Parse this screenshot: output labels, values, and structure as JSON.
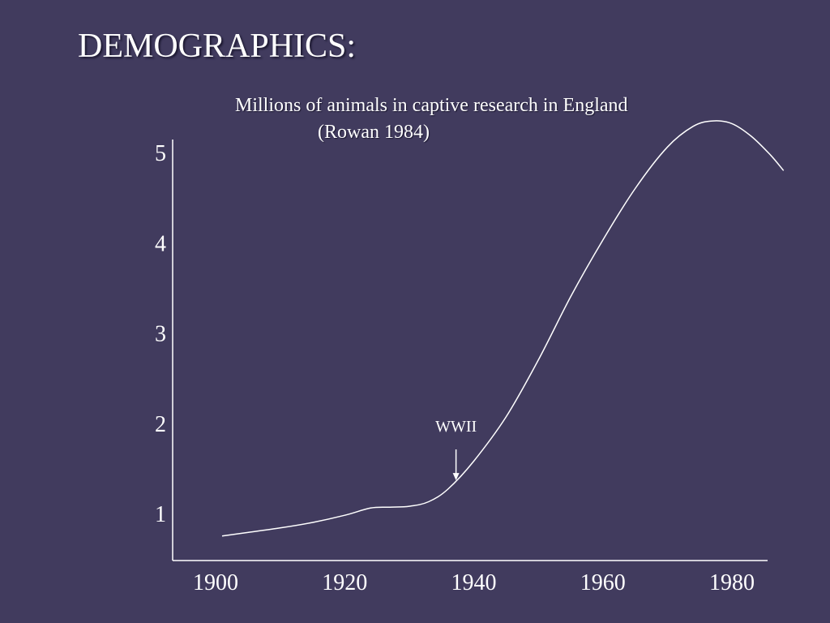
{
  "slide": {
    "title": "DEMOGRAPHICS:"
  },
  "chart_data": {
    "type": "line",
    "title": "Millions of animals in captive research in England",
    "subtitle": "(Rowan 1984)",
    "xlabel": "",
    "ylabel": "",
    "x_ticks": [
      1900,
      1920,
      1940,
      1960,
      1980
    ],
    "y_ticks": [
      1,
      2,
      3,
      4,
      5
    ],
    "xlim": [
      1895,
      1989
    ],
    "ylim": [
      0.4,
      5.2
    ],
    "grid": false,
    "line_color": "#FFFFFF",
    "background_color": "#413B5E",
    "series": [
      {
        "x": [
          1901,
          1905,
          1910,
          1915,
          1920,
          1924,
          1927,
          1930,
          1933,
          1936,
          1940,
          1945,
          1950,
          1955,
          1960,
          1965,
          1970,
          1974,
          1977,
          1980,
          1983,
          1986,
          1988
        ],
        "values": [
          0.75,
          0.79,
          0.84,
          0.9,
          0.98,
          1.06,
          1.07,
          1.08,
          1.13,
          1.27,
          1.58,
          2.07,
          2.7,
          3.4,
          4.03,
          4.6,
          5.06,
          5.29,
          5.35,
          5.32,
          5.18,
          4.97,
          4.8
        ]
      }
    ],
    "annotations": [
      {
        "label": "WWII",
        "x": 1937,
        "y": 1.35
      }
    ]
  }
}
